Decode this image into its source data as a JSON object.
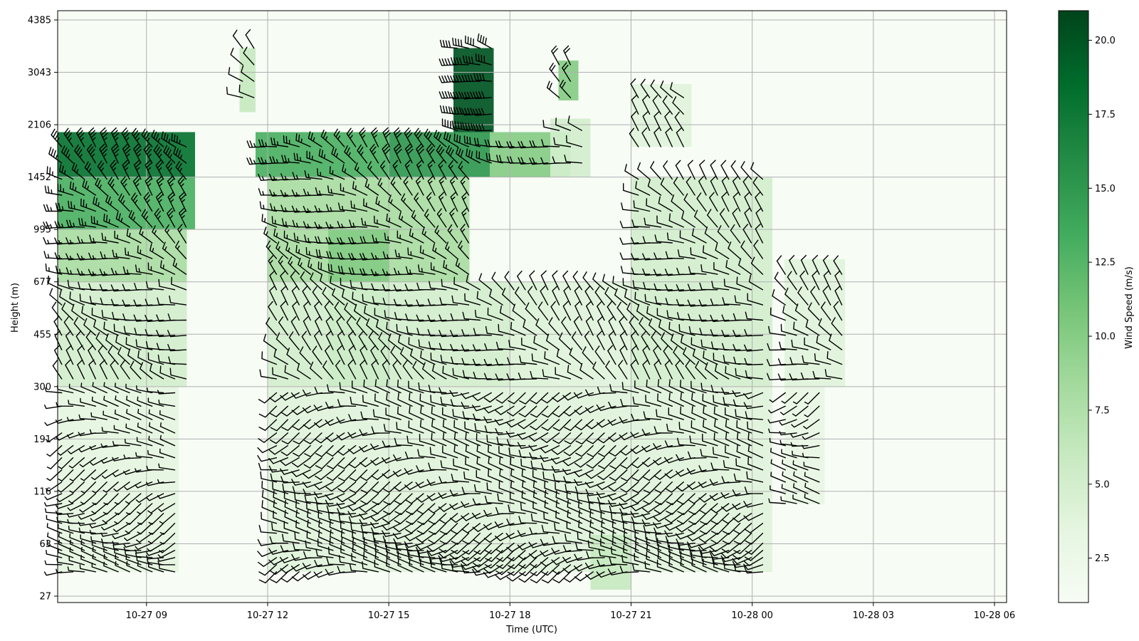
{
  "chart_data": {
    "type": "heatmap",
    "title": "",
    "xlabel": "Time (UTC)",
    "ylabel": "Height (m)",
    "x_ticks": [
      "10-27 09",
      "10-27 12",
      "10-27 15",
      "10-27 18",
      "10-27 21",
      "10-28 00",
      "10-28 03",
      "10-28 06"
    ],
    "x_tick_hours": [
      9,
      12,
      15,
      18,
      21,
      24,
      27,
      30
    ],
    "x_range_hours": [
      6.8,
      30.3
    ],
    "y_ticks": [
      "27",
      "63",
      "116",
      "191",
      "300",
      "455",
      "677",
      "995",
      "1452",
      "2106",
      "3043",
      "4385"
    ],
    "colorbar": {
      "label": "Wind Speed (m/s)",
      "ticks": [
        "2.5",
        "5.0",
        "7.5",
        "10.0",
        "12.5",
        "15.0",
        "17.5",
        "20.0"
      ],
      "tick_values": [
        2.5,
        5.0,
        7.5,
        10.0,
        12.5,
        15.0,
        17.5,
        20.0
      ],
      "range": [
        1.0,
        21.0
      ],
      "colormap": "Greens",
      "color_low": "#f7fcf5",
      "color_high": "#00441b"
    },
    "grid": true,
    "overlay": "wind-barbs",
    "regions_note_hidden": [],
    "speed_regions": [
      {
        "t": [
          6.8,
          10.2
        ],
        "h": [
          1452,
          2000
        ],
        "speed": 18
      },
      {
        "t": [
          6.8,
          10.2
        ],
        "h": [
          995,
          1452
        ],
        "speed": 13
      },
      {
        "t": [
          6.8,
          10.0
        ],
        "h": [
          677,
          995
        ],
        "speed": 8
      },
      {
        "t": [
          6.8,
          10.0
        ],
        "h": [
          300,
          677
        ],
        "speed": 5
      },
      {
        "t": [
          6.8,
          9.8
        ],
        "h": [
          40,
          300
        ],
        "speed": 3.5
      },
      {
        "t": [
          11.3,
          11.7
        ],
        "h": [
          2300,
          3600
        ],
        "speed": 6
      },
      {
        "t": [
          11.7,
          15.0
        ],
        "h": [
          1452,
          2000
        ],
        "speed": 13
      },
      {
        "t": [
          15.0,
          17.5
        ],
        "h": [
          1452,
          2000
        ],
        "speed": 15
      },
      {
        "t": [
          17.5,
          19.5
        ],
        "h": [
          1452,
          2000
        ],
        "speed": 10
      },
      {
        "t": [
          12.0,
          17.0
        ],
        "h": [
          677,
          1452
        ],
        "speed": 8
      },
      {
        "t": [
          13.5,
          15.0
        ],
        "h": [
          300,
          995
        ],
        "speed": 10
      },
      {
        "t": [
          12.0,
          19.0
        ],
        "h": [
          300,
          677
        ],
        "speed": 5
      },
      {
        "t": [
          12.0,
          18.0
        ],
        "h": [
          40,
          300
        ],
        "speed": 4
      },
      {
        "t": [
          16.6,
          17.6
        ],
        "h": [
          2000,
          3600
        ],
        "speed": 20
      },
      {
        "t": [
          19.2,
          19.7
        ],
        "h": [
          2500,
          3300
        ],
        "speed": 10
      },
      {
        "t": [
          19.0,
          20.0
        ],
        "h": [
          1452,
          2200
        ],
        "speed": 5
      },
      {
        "t": [
          18.0,
          21.0
        ],
        "h": [
          40,
          677
        ],
        "speed": 4
      },
      {
        "t": [
          20.0,
          21.0
        ],
        "h": [
          30,
          70
        ],
        "speed": 6
      },
      {
        "t": [
          21.0,
          22.5
        ],
        "h": [
          1800,
          2800
        ],
        "speed": 4
      },
      {
        "t": [
          21.0,
          24.5
        ],
        "h": [
          300,
          1452
        ],
        "speed": 5
      },
      {
        "t": [
          21.0,
          24.5
        ],
        "h": [
          40,
          300
        ],
        "speed": 4
      },
      {
        "t": [
          24.8,
          26.3
        ],
        "h": [
          300,
          800
        ],
        "speed": 4
      },
      {
        "t": [
          24.8,
          25.8
        ],
        "h": [
          100,
          300
        ],
        "speed": 3
      }
    ]
  }
}
